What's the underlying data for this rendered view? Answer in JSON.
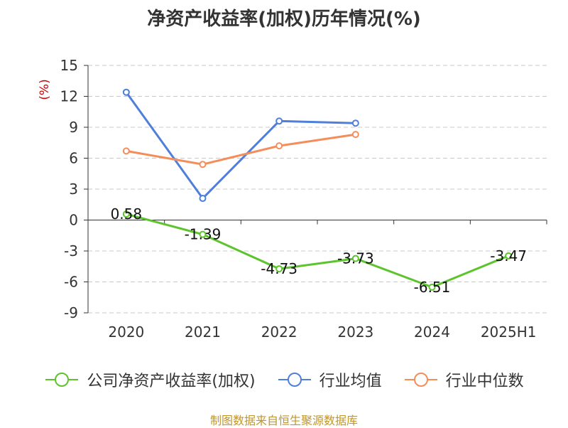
{
  "chart_data": {
    "type": "line",
    "title": "净资产收益率(加权)历年情况(%)",
    "ylabel": "(%)",
    "categories": [
      "2020",
      "2021",
      "2022",
      "2023",
      "2024",
      "2025H1"
    ],
    "ylim": [
      -9,
      15
    ],
    "yticks": [
      "15",
      "12",
      "9",
      "6",
      "3",
      "0",
      "-3",
      "-6",
      "-9"
    ],
    "grid": true,
    "legend_position": "bottom",
    "series": [
      {
        "name": "公司净资产收益率(加权)",
        "color": "#5dc42d",
        "values": [
          0.58,
          -1.39,
          -4.73,
          -3.73,
          -6.51,
          -3.47
        ],
        "labels": [
          "0.58",
          "-1.39",
          "-4.73",
          "-3.73",
          "-6.51",
          "-3.47"
        ]
      },
      {
        "name": "行业均值",
        "color": "#4f7fdb",
        "values": [
          12.4,
          2.1,
          9.6,
          9.4,
          null,
          null
        ]
      },
      {
        "name": "行业中位数",
        "color": "#f58d5b",
        "values": [
          6.7,
          5.4,
          7.2,
          8.3,
          null,
          null
        ]
      }
    ]
  },
  "footer": {
    "source": "制图数据来自恒生聚源数据库"
  }
}
